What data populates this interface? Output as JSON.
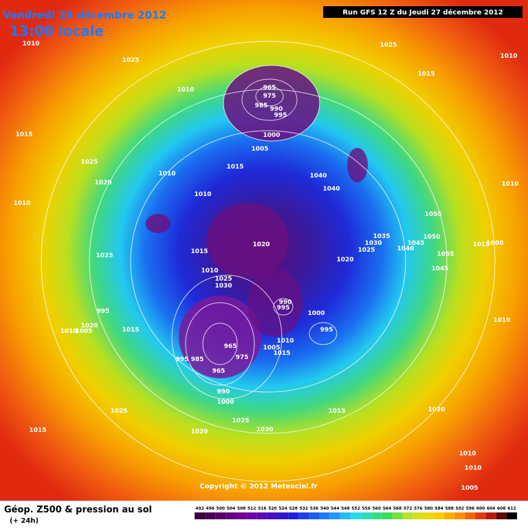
{
  "header": {
    "date": "Vendredi 28 décembre 2012",
    "time": "13:00 locale",
    "run": "Run GFS 12 Z du Jeudi 27 décembre 2012"
  },
  "isobar_labels": [
    "1010",
    "1025",
    "1025",
    "1010",
    "1015",
    "965",
    "975",
    "985",
    "990",
    "995",
    "1010",
    "1000",
    "1005",
    "1015",
    "1025",
    "1015",
    "1010",
    "1020",
    "1040",
    "1040",
    "1010",
    "1010",
    "1010",
    "1055",
    "1035",
    "1030",
    "1050",
    "1045",
    "1025",
    "1040",
    "1015",
    "1000",
    "1020",
    "1015",
    "1025",
    "1020",
    "1055",
    "1045",
    "1010",
    "1025",
    "1030",
    "990",
    "995",
    "1000",
    "995",
    "1020",
    "1010",
    "1005",
    "1015",
    "995",
    "1010",
    "1005",
    "1015",
    "965",
    "975",
    "995",
    "985",
    "965",
    "990",
    "1000",
    "1025",
    "1015",
    "1020",
    "1025",
    "1030",
    "1020",
    "1015",
    "1010",
    "1010",
    "1010",
    "1005"
  ],
  "copyright": "Copyright © 2012 Meteociel.fr",
  "footer": {
    "title": "Géop. Z500 & pression au sol",
    "subtitle": "(+ 24h)"
  },
  "legend": {
    "values": [
      492,
      496,
      500,
      504,
      508,
      512,
      516,
      520,
      524,
      528,
      532,
      536,
      540,
      544,
      548,
      552,
      556,
      560,
      564,
      568,
      572,
      576,
      580,
      584,
      588,
      592,
      596,
      600,
      604,
      608,
      612
    ]
  }
}
